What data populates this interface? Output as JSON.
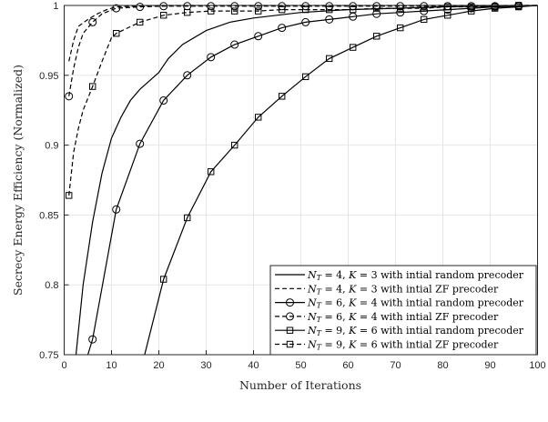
{
  "chart_data": {
    "type": "line",
    "title": "",
    "xlabel": "Number of Iterations",
    "ylabel": "Secrecy Energy Efficiency (Normalized)",
    "xlim": [
      0,
      100
    ],
    "ylim": [
      0.75,
      1
    ],
    "xticks": [
      0,
      10,
      20,
      30,
      40,
      50,
      60,
      70,
      80,
      90,
      100
    ],
    "yticks": [
      0.75,
      0.8,
      0.85,
      0.9,
      0.95,
      1
    ],
    "ytick_labels": [
      "0.75",
      "0.8",
      "0.85",
      "0.9",
      "0.95",
      "1"
    ],
    "grid": true,
    "legend_position": "lower right",
    "series": [
      {
        "name": "N_T = 4, K = 3 with intial random precoder",
        "style": "solid",
        "marker": "none",
        "x": [
          2.5,
          4,
          6,
          8,
          10,
          12,
          14,
          16,
          18,
          20,
          22,
          25,
          30,
          35,
          40,
          50,
          60,
          70,
          80,
          90,
          100
        ],
        "y": [
          0.75,
          0.8,
          0.845,
          0.88,
          0.905,
          0.92,
          0.932,
          0.94,
          0.946,
          0.952,
          0.962,
          0.972,
          0.982,
          0.988,
          0.991,
          0.995,
          0.997,
          0.998,
          0.999,
          0.9995,
          1.0
        ]
      },
      {
        "name": "N_T = 4, K = 3 with intial ZF precoder",
        "style": "dashed",
        "marker": "none",
        "x": [
          1,
          2,
          3,
          5,
          7,
          9,
          11,
          15,
          20,
          30,
          50,
          100
        ],
        "y": [
          0.96,
          0.975,
          0.985,
          0.99,
          0.994,
          0.997,
          0.999,
          0.9995,
          1.0,
          1.0,
          1.0,
          1.0
        ]
      },
      {
        "name": "N_T = 6, K = 4 with intial random precoder",
        "style": "solid",
        "marker": "circle",
        "x": [
          5,
          6,
          11,
          16,
          21,
          26,
          31,
          36,
          41,
          46,
          51,
          56,
          61,
          66,
          71,
          76,
          81,
          86,
          91,
          96,
          100
        ],
        "y": [
          0.75,
          0.761,
          0.854,
          0.901,
          0.932,
          0.95,
          0.963,
          0.972,
          0.978,
          0.984,
          0.988,
          0.99,
          0.992,
          0.994,
          0.995,
          0.996,
          0.997,
          0.998,
          0.999,
          0.9995,
          1.0
        ]
      },
      {
        "name": "N_T = 6, K = 4 with intial ZF precoder",
        "style": "dashed",
        "marker": "circle",
        "x": [
          1,
          2,
          3,
          4,
          6,
          8,
          11,
          16,
          21,
          26,
          31,
          36,
          41,
          46,
          51,
          56,
          61,
          66,
          71,
          76,
          81,
          86,
          91,
          96,
          100
        ],
        "y": [
          0.935,
          0.955,
          0.97,
          0.98,
          0.988,
          0.994,
          0.998,
          0.999,
          0.9995,
          0.9995,
          0.9995,
          0.9995,
          0.9995,
          0.9995,
          0.9995,
          0.9995,
          0.9995,
          0.9995,
          0.9995,
          0.9995,
          0.9995,
          0.9995,
          0.9995,
          1.0,
          1.0
        ]
      },
      {
        "name": "N_T = 9, K = 6 with intial random precoder",
        "style": "solid",
        "marker": "square",
        "x": [
          17,
          21,
          26,
          31,
          36,
          41,
          46,
          51,
          56,
          61,
          66,
          71,
          76,
          81,
          86,
          91,
          96,
          100
        ],
        "y": [
          0.75,
          0.804,
          0.848,
          0.881,
          0.9,
          0.92,
          0.935,
          0.949,
          0.962,
          0.97,
          0.978,
          0.984,
          0.99,
          0.993,
          0.996,
          0.998,
          0.999,
          1.0
        ]
      },
      {
        "name": "N_T = 9, K = 6 with intial ZF precoder",
        "style": "dashed",
        "marker": "square",
        "x": [
          1,
          2,
          3,
          4,
          6,
          8,
          10,
          11,
          16,
          21,
          26,
          31,
          36,
          41,
          46,
          51,
          56,
          61,
          66,
          71,
          76,
          81,
          86,
          91,
          96,
          100
        ],
        "y": [
          0.864,
          0.895,
          0.912,
          0.925,
          0.942,
          0.96,
          0.977,
          0.98,
          0.988,
          0.993,
          0.995,
          0.996,
          0.996,
          0.996,
          0.997,
          0.997,
          0.997,
          0.997,
          0.998,
          0.998,
          0.998,
          0.999,
          0.999,
          0.999,
          1.0,
          1.0
        ]
      }
    ]
  },
  "legend": {
    "entries": [
      {
        "prefix": "N",
        "sub": "T",
        "rest": " = 4, ",
        "kvar": "K",
        "krest": " = 3 with intial random precoder"
      },
      {
        "prefix": "N",
        "sub": "T",
        "rest": " = 4, ",
        "kvar": "K",
        "krest": " = 3 with intial ZF precoder"
      },
      {
        "prefix": "N",
        "sub": "T",
        "rest": " = 6, ",
        "kvar": "K",
        "krest": " = 4 with intial random precoder"
      },
      {
        "prefix": "N",
        "sub": "T",
        "rest": " = 6, ",
        "kvar": "K",
        "krest": " = 4 with intial ZF precoder"
      },
      {
        "prefix": "N",
        "sub": "T",
        "rest": " = 9, ",
        "kvar": "K",
        "krest": " = 6 with intial random precoder"
      },
      {
        "prefix": "N",
        "sub": "T",
        "rest": " = 9, ",
        "kvar": "K",
        "krest": " = 6 with intial ZF precoder"
      }
    ]
  },
  "colors": {
    "line": "#000000",
    "grid": "#e6e6e6",
    "axis": "#262626",
    "background": "#ffffff"
  }
}
